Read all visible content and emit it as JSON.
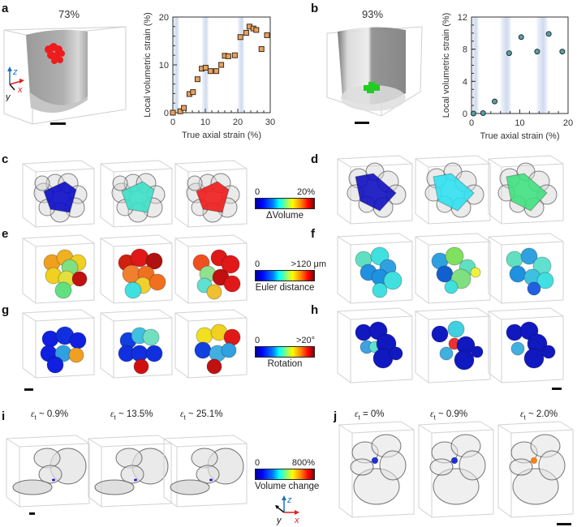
{
  "panels": {
    "a": {
      "letter": "a",
      "porosity": "73%"
    },
    "b": {
      "letter": "b",
      "porosity": "93%"
    },
    "c": {
      "letter": "c"
    },
    "d": {
      "letter": "d"
    },
    "e": {
      "letter": "e"
    },
    "f": {
      "letter": "f"
    },
    "g": {
      "letter": "g"
    },
    "h": {
      "letter": "h"
    },
    "i": {
      "letter": "i",
      "strains": [
        "~ 0.9%",
        "~ 13.5%",
        "~ 25.1%"
      ]
    },
    "j": {
      "letter": "j",
      "strains": [
        "= 0%",
        "~ 0.9%",
        "~ 2.0%"
      ]
    }
  },
  "strain_symbol": "ε",
  "strain_subscript": "t",
  "axes_triad": {
    "z": "z",
    "x": "x",
    "y": "y"
  },
  "colorbars": {
    "dvolume": {
      "min": "0",
      "max": "20%",
      "title": "ΔVolume"
    },
    "euler": {
      "min": "0",
      "max": ">120 μm",
      "title": "Euler distance"
    },
    "rotation": {
      "min": "0",
      "max": ">20°",
      "title": "Rotation"
    },
    "volume_change": {
      "min": "0",
      "max": "800%",
      "title": "Volume change"
    }
  },
  "colors": {
    "marker_a": "#e8a25f",
    "marker_b": "#5e9ea6",
    "marker_edge": "#3a2a1a",
    "band": "#c9d6ec",
    "cluster_red": "#ee1c1c",
    "cluster_green": "#22cc22"
  },
  "chart_data": [
    {
      "type": "scatter",
      "title": "",
      "xlabel": "True axial strain (%)",
      "ylabel": "Local volumetric strain (%)",
      "xlim": [
        0,
        30
      ],
      "ylim": [
        0,
        20
      ],
      "xticks": [
        0,
        10,
        20,
        30
      ],
      "yticks": [
        0,
        10,
        20
      ],
      "grid": false,
      "marker": "square",
      "shaded_bands": [
        [
          0,
          2
        ],
        [
          9,
          11
        ],
        [
          20,
          22
        ]
      ],
      "x": [
        0,
        2.3,
        3.4,
        5.1,
        6.2,
        7.6,
        8.9,
        10.1,
        11.6,
        13.4,
        14.9,
        16.0,
        17.1,
        19.1,
        20.8,
        22.6,
        23.6,
        24.8,
        25.7,
        27.3,
        29.0
      ],
      "y": [
        0,
        0.3,
        1.0,
        3.9,
        4.3,
        7.0,
        9.2,
        9.4,
        8.7,
        8.7,
        10.0,
        11.9,
        11.8,
        12.0,
        15.8,
        16.7,
        18.0,
        17.6,
        17.3,
        13.3,
        16.2
      ]
    },
    {
      "type": "scatter",
      "title": "",
      "xlabel": "True axial strain (%)",
      "ylabel": "Local volumetric strain (%)",
      "xlim": [
        0,
        20
      ],
      "ylim": [
        0,
        12
      ],
      "xticks": [
        0,
        10,
        20
      ],
      "yticks": [
        0,
        4,
        8,
        12
      ],
      "grid": false,
      "marker": "circle",
      "shaded_bands": [
        [
          0,
          1.5
        ],
        [
          6,
          8.2
        ],
        [
          13.5,
          15.8
        ]
      ],
      "x": [
        0.4,
        2.4,
        4.8,
        7.8,
        10.3,
        13.6,
        16.0,
        18.8
      ],
      "y": [
        0,
        0.05,
        1.5,
        7.5,
        9.5,
        7.7,
        9.9,
        7.7
      ]
    }
  ]
}
